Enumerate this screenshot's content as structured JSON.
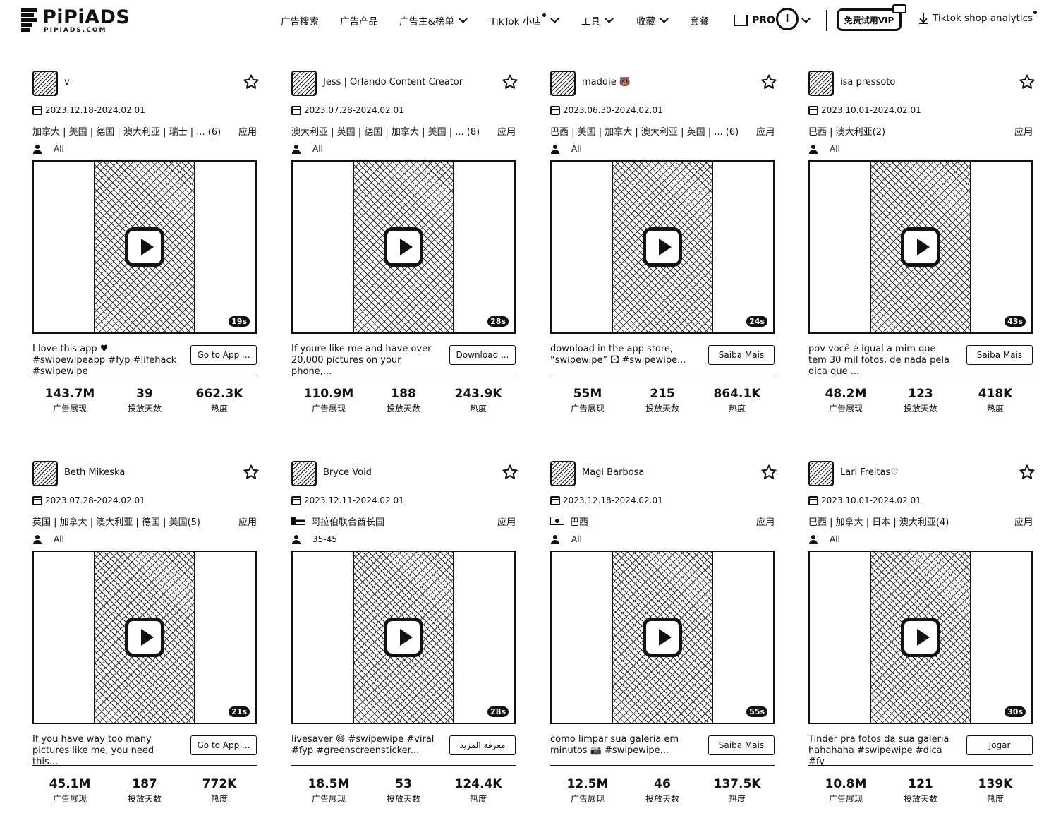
{
  "header": {
    "logo_name": "PiPiADS",
    "logo_sub": "PIPIADS.COM",
    "nav": [
      {
        "label": "广告搜索",
        "caret": false,
        "dot": false
      },
      {
        "label": "广告产品",
        "caret": false,
        "dot": false
      },
      {
        "label": "广告主&榜单",
        "caret": true,
        "dot": false
      },
      {
        "label": "TikTok 小店",
        "caret": true,
        "dot": true
      },
      {
        "label": "工具",
        "caret": true,
        "dot": false
      },
      {
        "label": "收藏",
        "caret": true,
        "dot": false
      },
      {
        "label": "套餐",
        "caret": false,
        "dot": false
      }
    ],
    "pro_label": "PRO",
    "avatar_letter": "i",
    "vip_label": "免费试用VIP",
    "shop_analytics_label": "Tiktok shop analytics"
  },
  "cards": [
    {
      "name": "v",
      "date": "2023.12.18-2024.02.01",
      "countries": "加拿大 | 美国 | 德国 | 澳大利亚 | 瑞士 | ...",
      "countries_count": "(6)",
      "app_label": "应用",
      "audience": "All",
      "duration": "19s",
      "description": "I love this app ♥ #swipewipeapp #fyp #lifehack #swipewipe",
      "cta": "Go to App ...",
      "impressions": "143.7M",
      "days": "39",
      "heat": "662.3K",
      "impressions_label": "广告展现",
      "days_label": "投放天数",
      "heat_label": "热度",
      "flag": ""
    },
    {
      "name": "Jess | Orlando Content Creator",
      "date": "2023.07.28-2024.02.01",
      "countries": "澳大利亚 | 英国 | 德国 | 加拿大 | 美国 | ...",
      "countries_count": "(8)",
      "app_label": "应用",
      "audience": "All",
      "duration": "28s",
      "description": "If youre like me and have over 20,000 pictures on your phone,...",
      "cta": "Download ...",
      "impressions": "110.9M",
      "days": "188",
      "heat": "243.9K",
      "impressions_label": "广告展现",
      "days_label": "投放天数",
      "heat_label": "热度",
      "flag": ""
    },
    {
      "name": "maddie 🐻",
      "date": "2023.06.30-2024.02.01",
      "countries": "巴西 | 美国 | 加拿大 | 澳大利亚 | 英国 | ...",
      "countries_count": "(6)",
      "app_label": "应用",
      "audience": "All",
      "duration": "24s",
      "description": "download in the app store, “swipewipe” 🖸 #swipewipe...",
      "cta": "Saiba Mais",
      "impressions": "55M",
      "days": "215",
      "heat": "864.1K",
      "impressions_label": "广告展现",
      "days_label": "投放天数",
      "heat_label": "热度",
      "flag": ""
    },
    {
      "name": "isa pressoto",
      "date": "2023.10.01-2024.02.01",
      "countries": "巴西 | 澳大利亚(2)",
      "countries_count": "",
      "app_label": "应用",
      "audience": "All",
      "duration": "43s",
      "description": "pov você é igual a mim que tem 30 mil fotos, de nada pela dica que ...",
      "cta": "Saiba Mais",
      "impressions": "48.2M",
      "days": "123",
      "heat": "418K",
      "impressions_label": "广告展现",
      "days_label": "投放天数",
      "heat_label": "热度",
      "flag": ""
    },
    {
      "name": "Beth Mikeska",
      "date": "2023.07.28-2024.02.01",
      "countries": "英国 | 加拿大 | 澳大利亚 | 德国 | 美国(5)",
      "countries_count": "",
      "app_label": "应用",
      "audience": "All",
      "duration": "21s",
      "description": "If you have way too many pictures like me, you need this...",
      "cta": "Go to App ...",
      "impressions": "45.1M",
      "days": "187",
      "heat": "772K",
      "impressions_label": "广告展现",
      "days_label": "投放天数",
      "heat_label": "热度",
      "flag": ""
    },
    {
      "name": "Bryce Void",
      "date": "2023.12.11-2024.02.01",
      "countries": "阿拉伯联合酋长国",
      "countries_count": "",
      "app_label": "应用",
      "audience": "35-45",
      "duration": "28s",
      "description": "livesaver 😅 #swipewipe #viral #fyp #greenscreensticker...",
      "cta": "معرفة المزيد",
      "impressions": "18.5M",
      "days": "53",
      "heat": "124.4K",
      "impressions_label": "广告展现",
      "days_label": "投放天数",
      "heat_label": "热度",
      "flag": "ae"
    },
    {
      "name": "Magi Barbosa",
      "date": "2023.12.18-2024.02.01",
      "countries": "巴西",
      "countries_count": "",
      "app_label": "应用",
      "audience": "All",
      "duration": "55s",
      "description": "como limpar sua galeria em minutos 📷 #swipewipe...",
      "cta": "Saiba Mais",
      "impressions": "12.5M",
      "days": "46",
      "heat": "137.5K",
      "impressions_label": "广告展现",
      "days_label": "投放天数",
      "heat_label": "热度",
      "flag": "br"
    },
    {
      "name": "Lari Freitas♡",
      "date": "2023.10.01-2024.02.01",
      "countries": "巴西 | 加拿大 | 日本 | 澳大利亚(4)",
      "countries_count": "",
      "app_label": "应用",
      "audience": "All",
      "duration": "30s",
      "description": "Tinder pra fotos da sua galeria hahahaha #swipewipe #dica #fy",
      "cta": "Jogar",
      "impressions": "10.8M",
      "days": "121",
      "heat": "139K",
      "impressions_label": "广告展现",
      "days_label": "投放天数",
      "heat_label": "热度",
      "flag": ""
    }
  ]
}
